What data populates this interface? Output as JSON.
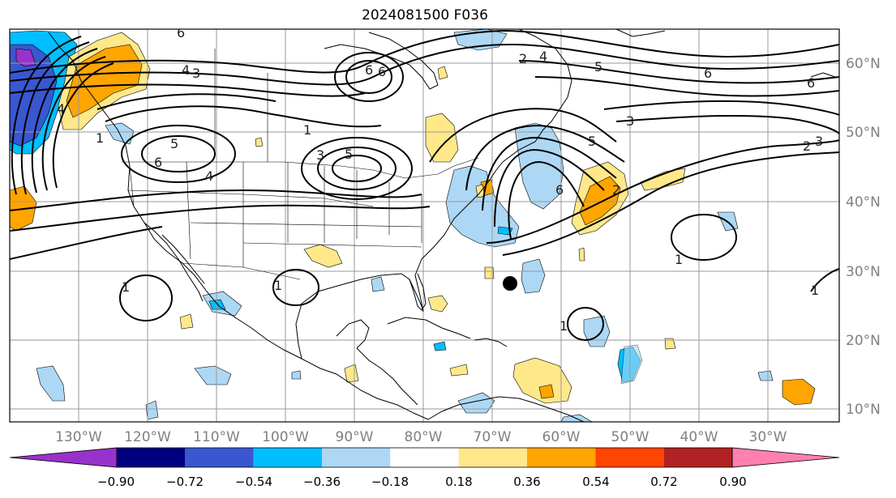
{
  "title": "2024081500 F036",
  "lon_labels": [
    "130°W",
    "120°W",
    "110°W",
    "100°W",
    "90°W",
    "80°W",
    "70°W",
    "60°W",
    "50°W",
    "40°W",
    "30°W"
  ],
  "lat_labels": [
    "60°N",
    "50°N",
    "40°N",
    "30°N",
    "20°N",
    "10°N"
  ],
  "colorbar": {
    "colors": [
      "#9932cc",
      "#000080",
      "#3a57cf",
      "#00bfff",
      "#add8f5",
      "#ffffff",
      "#ffe88a",
      "#ffa500",
      "#ff4500",
      "#b22222",
      "#ff80b0"
    ],
    "ticks": [
      "−0.90",
      "−0.72",
      "−0.54",
      "−0.36",
      "−0.18",
      "0.18",
      "0.36",
      "0.54",
      "0.72",
      "0.90"
    ]
  },
  "contour_labels": [
    "6",
    "4",
    "1",
    "6",
    "5",
    "3",
    "2",
    "4",
    "5",
    "6",
    "6",
    "3",
    "5",
    "6",
    "5",
    "3",
    "4",
    "3",
    "6",
    "4",
    "1",
    "2",
    "2",
    "6",
    "1",
    "1",
    "1",
    "1",
    "1"
  ]
}
